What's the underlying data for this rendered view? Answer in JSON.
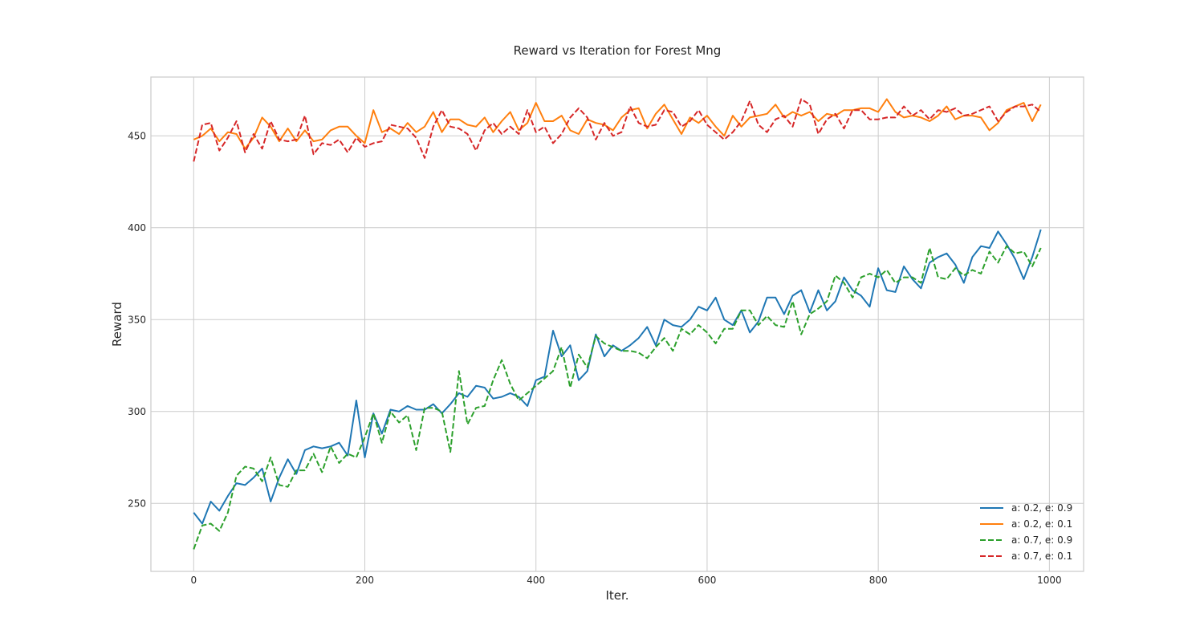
{
  "chart_data": {
    "type": "line",
    "title": "Reward vs Iteration for Forest Mng",
    "xlabel": "Iter.",
    "ylabel": "Reward",
    "xlim": [
      -50,
      1040
    ],
    "ylim": [
      213,
      482
    ],
    "xticks": [
      0,
      200,
      400,
      600,
      800,
      1000
    ],
    "yticks": [
      250,
      300,
      350,
      400,
      450
    ],
    "grid": true,
    "legend_position": "lower-right",
    "x": [
      0,
      10,
      20,
      30,
      40,
      50,
      60,
      70,
      80,
      90,
      100,
      110,
      120,
      130,
      140,
      150,
      160,
      170,
      180,
      190,
      200,
      210,
      220,
      230,
      240,
      250,
      260,
      270,
      280,
      290,
      300,
      310,
      320,
      330,
      340,
      350,
      360,
      370,
      380,
      390,
      400,
      410,
      420,
      430,
      440,
      450,
      460,
      470,
      480,
      490,
      500,
      510,
      520,
      530,
      540,
      550,
      560,
      570,
      580,
      590,
      600,
      610,
      620,
      630,
      640,
      650,
      660,
      670,
      680,
      690,
      700,
      710,
      720,
      730,
      740,
      750,
      760,
      770,
      780,
      790,
      800,
      810,
      820,
      830,
      840,
      850,
      860,
      870,
      880,
      890,
      900,
      910,
      920,
      930,
      940,
      950,
      960,
      970,
      980,
      990
    ],
    "series": [
      {
        "name": "a: 0.2, e: 0.9",
        "color": "#1f77b4",
        "style": "solid",
        "values": [
          245,
          239,
          251,
          246,
          254,
          261,
          260,
          264,
          269,
          251,
          264,
          274,
          266,
          279,
          281,
          280,
          281,
          283,
          276,
          306,
          275,
          299,
          288,
          301,
          300,
          303,
          301,
          301,
          304,
          299,
          304,
          310,
          308,
          314,
          313,
          307,
          308,
          310,
          308,
          303,
          317,
          319,
          344,
          330,
          336,
          317,
          322,
          342,
          330,
          336,
          333,
          336,
          340,
          346,
          336,
          350,
          347,
          346,
          350,
          357,
          355,
          362,
          350,
          347,
          355,
          343,
          349,
          362,
          362,
          353,
          363,
          366,
          354,
          366,
          355,
          360,
          373,
          366,
          363,
          357,
          378,
          366,
          365,
          379,
          372,
          367,
          381,
          384,
          386,
          380,
          370,
          384,
          390,
          389,
          398,
          391,
          383,
          372,
          384,
          399
        ]
      },
      {
        "name": "a: 0.2, e: 0.1",
        "color": "#ff7f0e",
        "style": "solid",
        "values": [
          448,
          450,
          454,
          447,
          452,
          451,
          443,
          449,
          460,
          455,
          447,
          454,
          447,
          453,
          447,
          448,
          453,
          455,
          455,
          450,
          446,
          464,
          452,
          454,
          451,
          457,
          452,
          455,
          463,
          452,
          459,
          459,
          456,
          455,
          460,
          452,
          458,
          463,
          453,
          457,
          468,
          458,
          458,
          461,
          453,
          451,
          459,
          457,
          456,
          453,
          460,
          464,
          465,
          454,
          462,
          467,
          459,
          451,
          460,
          457,
          461,
          455,
          450,
          461,
          455,
          460,
          461,
          462,
          467,
          460,
          463,
          461,
          463,
          458,
          462,
          461,
          464,
          464,
          465,
          465,
          463,
          470,
          463,
          460,
          461,
          460,
          458,
          461,
          466,
          459,
          461,
          461,
          460,
          453,
          457,
          464,
          466,
          468,
          458,
          467
        ]
      },
      {
        "name": "a: 0.7, e: 0.9",
        "color": "#2ca02c",
        "style": "dashed",
        "values": [
          225,
          238,
          239,
          235,
          245,
          265,
          270,
          269,
          262,
          275,
          260,
          259,
          268,
          268,
          277,
          267,
          281,
          272,
          277,
          275,
          286,
          299,
          283,
          300,
          294,
          298,
          279,
          302,
          302,
          300,
          278,
          322,
          293,
          302,
          303,
          317,
          328,
          315,
          306,
          310,
          314,
          318,
          322,
          335,
          313,
          331,
          324,
          341,
          337,
          335,
          333,
          333,
          332,
          329,
          335,
          340,
          333,
          345,
          342,
          347,
          343,
          337,
          345,
          345,
          355,
          355,
          347,
          352,
          347,
          346,
          360,
          342,
          353,
          356,
          360,
          374,
          370,
          362,
          373,
          375,
          373,
          377,
          370,
          373,
          373,
          370,
          389,
          373,
          372,
          378,
          374,
          377,
          375,
          387,
          381,
          390,
          386,
          387,
          379,
          389
        ]
      },
      {
        "name": "a: 0.7, e: 0.1",
        "color": "#d62728",
        "style": "dashed",
        "values": [
          436,
          456,
          457,
          442,
          449,
          458,
          441,
          451,
          443,
          458,
          448,
          447,
          448,
          461,
          440,
          446,
          445,
          448,
          441,
          449,
          444,
          446,
          447,
          456,
          455,
          454,
          449,
          438,
          455,
          464,
          455,
          454,
          451,
          442,
          453,
          457,
          451,
          455,
          451,
          464,
          452,
          455,
          446,
          451,
          460,
          465,
          460,
          448,
          457,
          450,
          452,
          466,
          457,
          455,
          456,
          464,
          463,
          455,
          458,
          464,
          456,
          452,
          448,
          452,
          458,
          469,
          456,
          452,
          459,
          461,
          455,
          470,
          467,
          451,
          459,
          462,
          454,
          464,
          464,
          459,
          459,
          460,
          460,
          466,
          461,
          464,
          459,
          464,
          463,
          465,
          461,
          462,
          464,
          466,
          458,
          463,
          466,
          466,
          467,
          463
        ]
      }
    ]
  }
}
